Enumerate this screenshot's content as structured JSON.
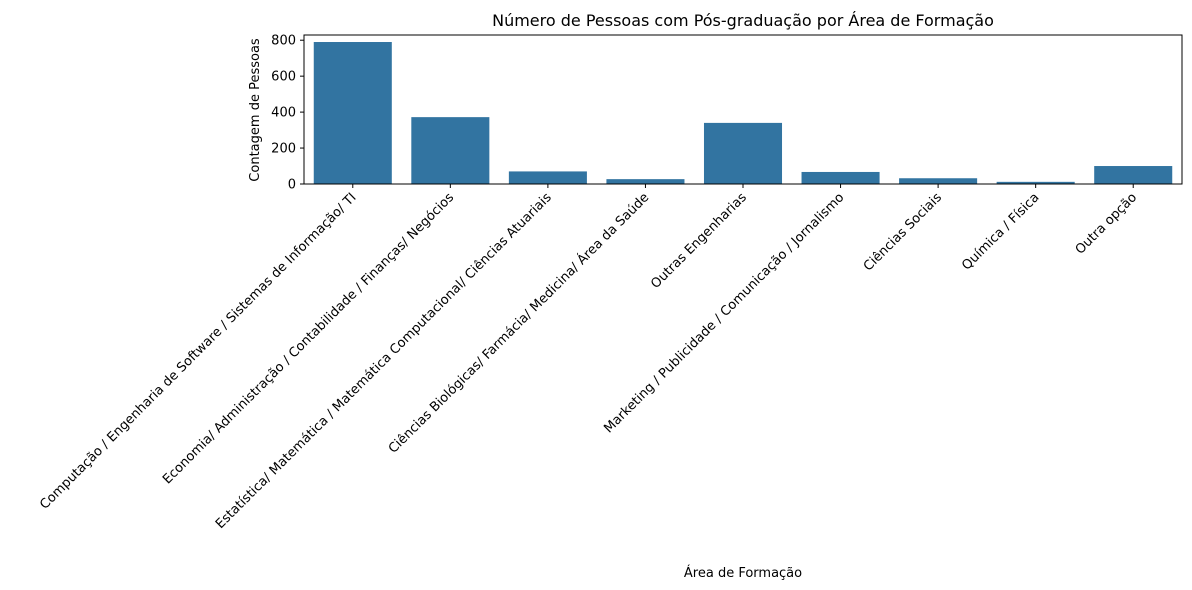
{
  "chart_data": {
    "type": "bar",
    "title": "Número de Pessoas com Pós-graduação por Área de Formação",
    "xlabel": "Área de Formação",
    "ylabel": "Contagem de Pessoas",
    "categories": [
      "Computação / Engenharia de Software / Sistemas de Informação/ TI",
      "Economia/ Administração / Contabilidade / Finanças/ Negócios",
      "Estatística/ Matemática / Matemática Computacional/ Ciências Atuariais",
      "Ciências Biológicas/ Farmácia/ Medicina/ Área da Saúde",
      "Outras Engenharias",
      "Marketing / Publicidade / Comunicação / Jornalismo",
      "Ciências Sociais",
      "Química / Física",
      "Outra opção"
    ],
    "values": [
      790,
      372,
      70,
      27,
      340,
      67,
      32,
      12,
      100
    ],
    "yticks": [
      0,
      200,
      400,
      600,
      800
    ],
    "ylim": [
      0,
      829
    ],
    "grid": false,
    "bar_color": "#3274a1"
  }
}
